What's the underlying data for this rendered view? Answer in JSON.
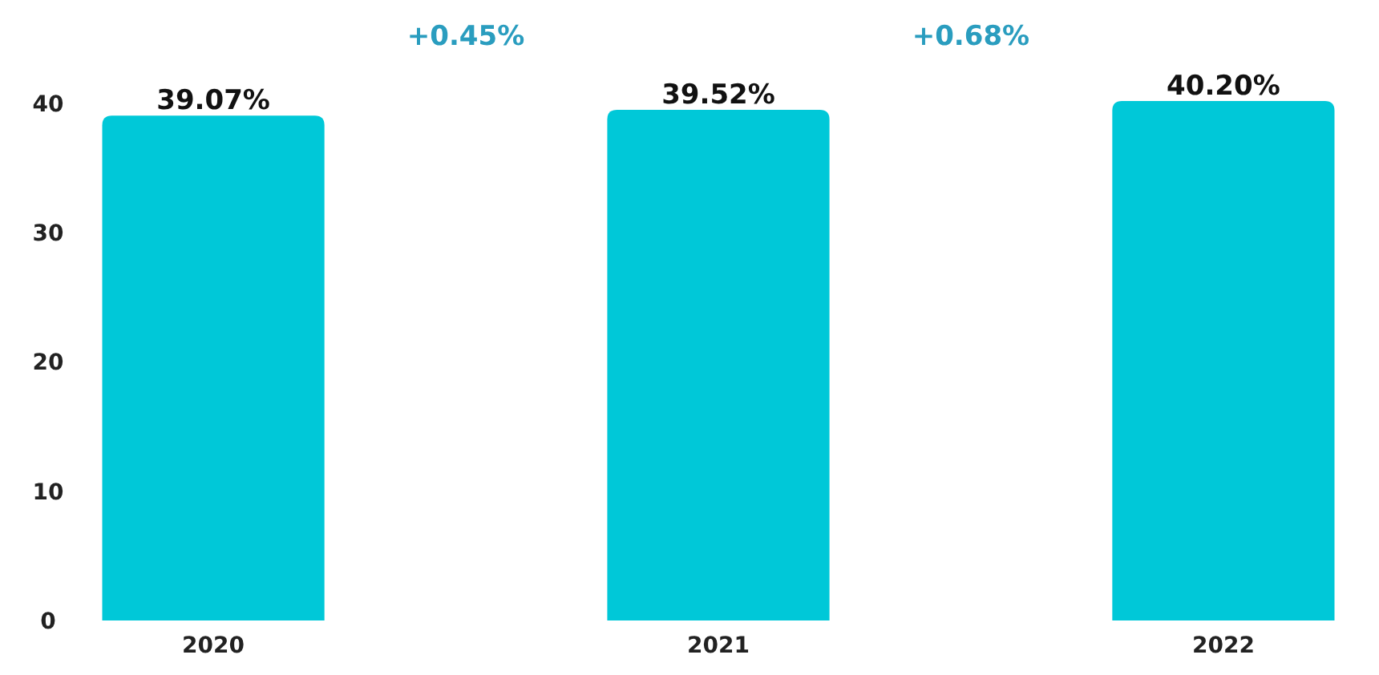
{
  "chart_data": {
    "type": "bar",
    "categories": [
      "2020",
      "2021",
      "2022"
    ],
    "values": [
      39.07,
      39.52,
      40.2
    ],
    "value_labels": [
      "39.07%",
      "39.52%",
      "40.20%"
    ],
    "color": "#00c8d8",
    "ylim": [
      0,
      40.2
    ],
    "yticks": [
      0,
      10,
      20,
      30,
      40
    ],
    "grid": false,
    "annotations": [
      "+0.45%",
      "+0.68%"
    ]
  }
}
